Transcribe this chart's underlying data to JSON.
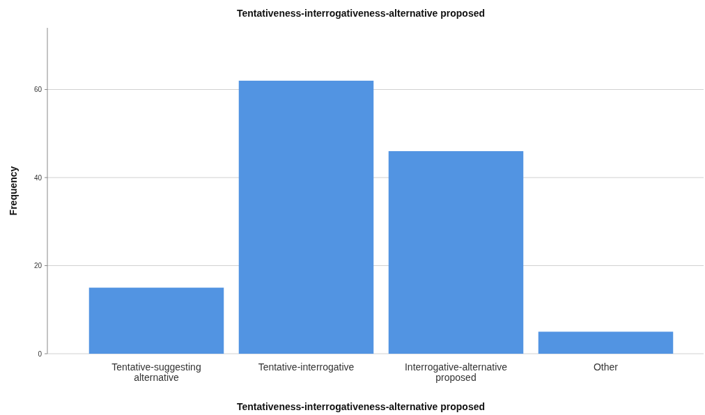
{
  "chart_data": {
    "type": "bar",
    "title": "Tentativeness-interrogativeness-alternative proposed",
    "xlabel": "Tentativeness-interrogativeness-alternative proposed",
    "ylabel": "Frequency",
    "categories": [
      "Tentative-suggesting alternative",
      "Tentative-interrogative",
      "Interrogative-alternative proposed",
      "Other"
    ],
    "values": [
      15,
      62,
      46,
      5
    ],
    "color": "#5294e2",
    "ylim": [
      0,
      74
    ],
    "yticks": [
      0,
      20,
      40,
      60
    ],
    "grid": "y"
  }
}
